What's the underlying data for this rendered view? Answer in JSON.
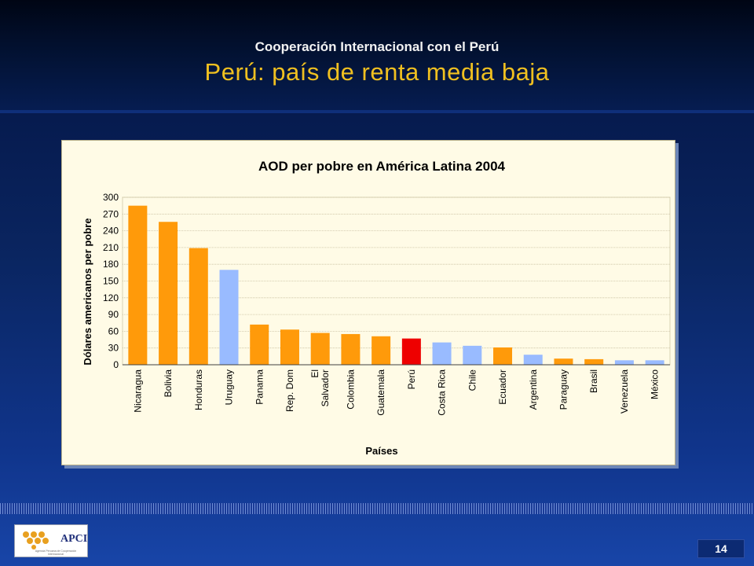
{
  "slide": {
    "subtitle": "Cooperación Internacional con el Perú",
    "title": "Perú: país de renta media baja",
    "page_number": "14"
  },
  "logo": {
    "text": "APCI",
    "tagline": "Agencia Peruana de Cooperación Internacional"
  },
  "colors": {
    "orange": "#ff9a0a",
    "light_blue": "#99bbff",
    "red": "#ee0000",
    "title_yellow": "#f0c020"
  },
  "chart_data": {
    "type": "bar",
    "title": "AOD per pobre en América Latina 2004",
    "xlabel": "Países",
    "ylabel": "Dólares americanos per pobre",
    "ylim": [
      0,
      300
    ],
    "yticks": [
      0,
      30,
      60,
      90,
      120,
      150,
      180,
      210,
      240,
      270,
      300
    ],
    "grid": true,
    "categories": [
      "Nicaragua",
      "Bolivia",
      "Honduras",
      "Uruguay",
      "Panama",
      "Rep. Dom",
      "El Salvador",
      "Colombia",
      "Guatemala",
      "Perú",
      "Costa Rica",
      "Chile",
      "Ecuador",
      "Argentina",
      "Paraguay",
      "Brasil",
      "Venezuela",
      "México"
    ],
    "category_lines": [
      [
        "Nicaragua"
      ],
      [
        "Bolivia"
      ],
      [
        "Honduras"
      ],
      [
        "Uruguay"
      ],
      [
        "Panama"
      ],
      [
        "Rep. Dom"
      ],
      [
        "El",
        "Salvador"
      ],
      [
        "Colombia"
      ],
      [
        "Guatemala"
      ],
      [
        "Perú"
      ],
      [
        "Costa Rica"
      ],
      [
        "Chile"
      ],
      [
        "Ecuador"
      ],
      [
        "Argentina"
      ],
      [
        "Paraguay"
      ],
      [
        "Brasil"
      ],
      [
        "Venezuela"
      ],
      [
        "México"
      ]
    ],
    "values": [
      285,
      256,
      209,
      170,
      72,
      63,
      57,
      55,
      51,
      47,
      40,
      34,
      31,
      18,
      11,
      10,
      8,
      8
    ],
    "bar_colors": [
      "#ff9a0a",
      "#ff9a0a",
      "#ff9a0a",
      "#99bbff",
      "#ff9a0a",
      "#ff9a0a",
      "#ff9a0a",
      "#ff9a0a",
      "#ff9a0a",
      "#ee0000",
      "#99bbff",
      "#99bbff",
      "#ff9a0a",
      "#99bbff",
      "#ff9a0a",
      "#ff9a0a",
      "#99bbff",
      "#99bbff"
    ]
  }
}
